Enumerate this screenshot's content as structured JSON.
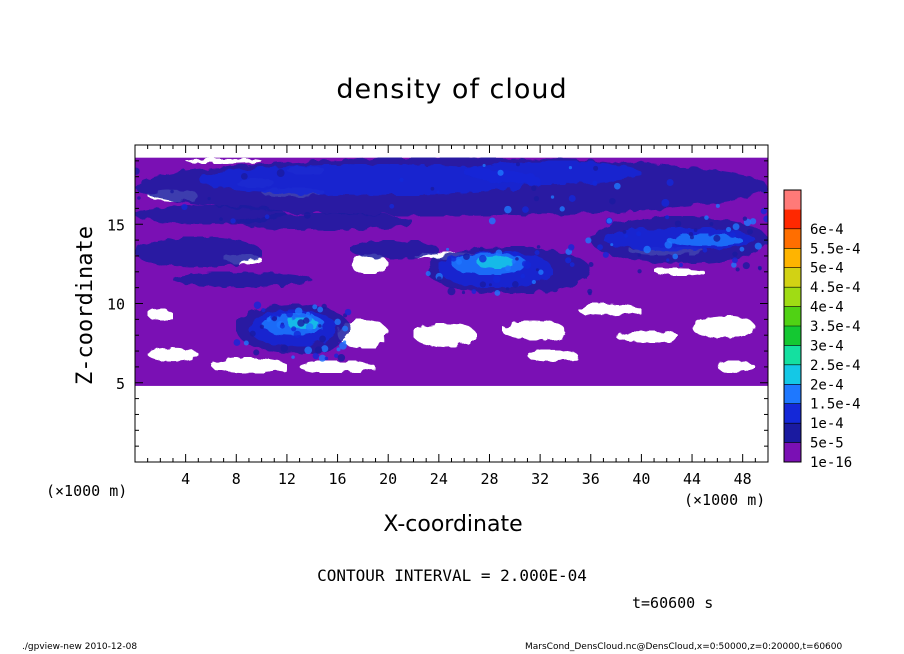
{
  "chart_data": {
    "type": "heatmap",
    "title": "density of cloud",
    "xlabel": "X-coordinate",
    "ylabel": "Z-coordinate",
    "x_unit": "(×1000 m)",
    "x_unit_right": "(×1000 m)",
    "xlim": [
      0,
      50
    ],
    "ylim": [
      0,
      20
    ],
    "x_ticks": [
      4,
      8,
      12,
      16,
      20,
      24,
      28,
      32,
      36,
      40,
      44,
      48
    ],
    "y_ticks": [
      5,
      10,
      15
    ],
    "contour_interval": "CONTOUR INTERVAL = 2.000E-04",
    "time_label": "t=60600 s",
    "colorbar": {
      "levels": [
        "1e-16",
        "5e-5",
        "1e-4",
        "1.5e-4",
        "2e-4",
        "2.5e-4",
        "3e-4",
        "3.5e-4",
        "4e-4",
        "4.5e-4",
        "5e-4",
        "5.5e-4",
        "6e-4"
      ],
      "colors": [
        "#7a10b4",
        "#1a1aa0",
        "#1428d8",
        "#1e78ff",
        "#14c8e6",
        "#14e0a0",
        "#14c832",
        "#50d214",
        "#a0dc14",
        "#d2d214",
        "#ffb400",
        "#ff6e00",
        "#ff2800",
        "#ff7a78"
      ]
    },
    "cloud_layer_z_range": [
      4.8,
      19.2
    ],
    "regions": [
      {
        "name": "upper band",
        "x": [
          0,
          50
        ],
        "z": [
          15,
          19
        ]
      },
      {
        "name": "main cell",
        "x": [
          23,
          36
        ],
        "z": [
          10.5,
          14
        ]
      },
      {
        "name": "lower cell",
        "x": [
          8,
          17
        ],
        "z": [
          6.5,
          10
        ]
      },
      {
        "name": "right band",
        "x": [
          36,
          50
        ],
        "z": [
          12,
          15.5
        ]
      }
    ]
  },
  "footer": {
    "left": "./gpview-new   2010-12-08",
    "right": "MarsCond_DensCloud.nc@DensCloud,x=0:50000,z=0:20000,t=60600"
  }
}
